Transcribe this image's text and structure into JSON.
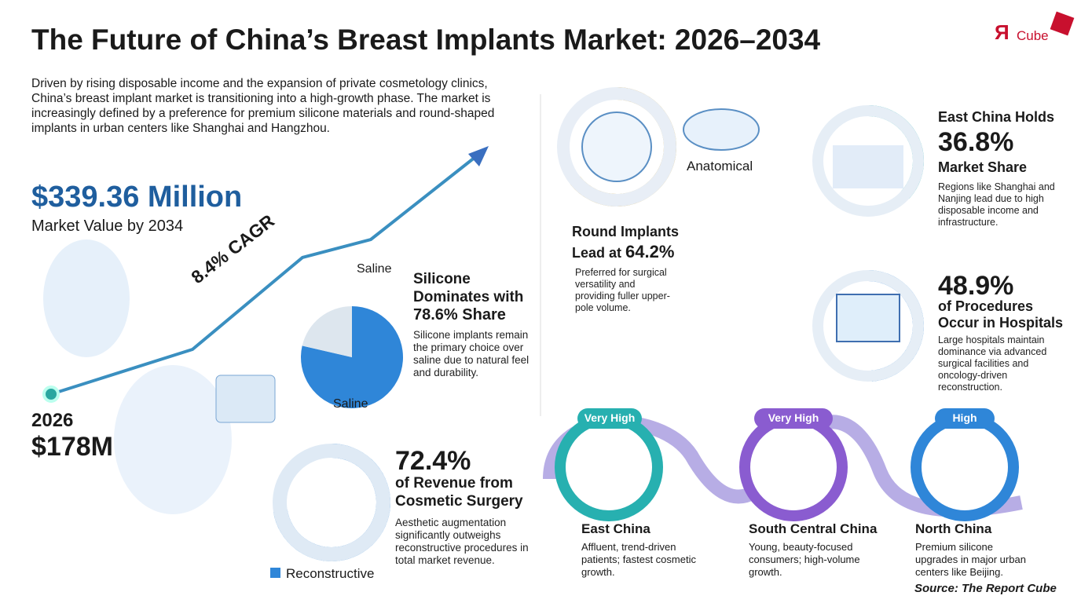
{
  "header": {
    "title": "The Future of China’s Breast Implants Market: 2026–2034",
    "logo_mark": "Я",
    "logo_text": "Cube"
  },
  "intro": "Driven by rising disposable income and the expansion of private cosmetology clinics, China’s breast implant market is transitioning into a high-growth phase. The market is increasingly defined by a preference for premium silicone materials and round-shaped implants in urban centers like Shanghai and Hangzhou.",
  "forecast": {
    "value": "$339.36 Million",
    "label": "Market Value by 2034",
    "cagr": "8.4% CAGR",
    "start_year": "2026",
    "start_value": "$178M"
  },
  "material": {
    "slice_label_top": "Saline",
    "slice_label_bottom": "Saline",
    "heading": "Silicone Dominates with",
    "share": "78.6%",
    "share_suffix": "Share",
    "description": "Silicone implants remain the primary choice over saline due to natural feel and durability."
  },
  "application": {
    "share": "72.4%",
    "heading": "of Revenue from Cosmetic Surgery",
    "description": "Aesthetic augmentation significantly outweighs reconstructive procedures in total market revenue.",
    "legend": "Reconstructive"
  },
  "shape": {
    "other_label": "Anatomical",
    "heading": "Round Implants",
    "heading_prefix": "Lead at",
    "share": "64.2%",
    "description": "Preferred for surgical versatility and providing fuller upper-pole volume."
  },
  "region_share": {
    "heading": "East China Holds",
    "share": "36.8%",
    "suffix": "Market Share",
    "description": "Regions like Shanghai and Nanjing lead due to high disposable income and infrastructure."
  },
  "end_user": {
    "share": "48.9%",
    "heading": "of Procedures Occur in Hospitals",
    "description": "Large hospitals maintain dominance via advanced surgical facilities and oncology-driven reconstruction."
  },
  "regions": [
    {
      "level": "Very High",
      "name": "East China",
      "description": "Affluent, trend-driven patients; fastest cosmetic growth."
    },
    {
      "level": "Very High",
      "name": "South Central China",
      "description": "Young, beauty-focused consumers; high-volume growth."
    },
    {
      "level": "High",
      "name": "North China",
      "description": "Premium silicone upgrades in major urban centers like Beijing."
    }
  ],
  "source": "Source: The Report Cube"
}
